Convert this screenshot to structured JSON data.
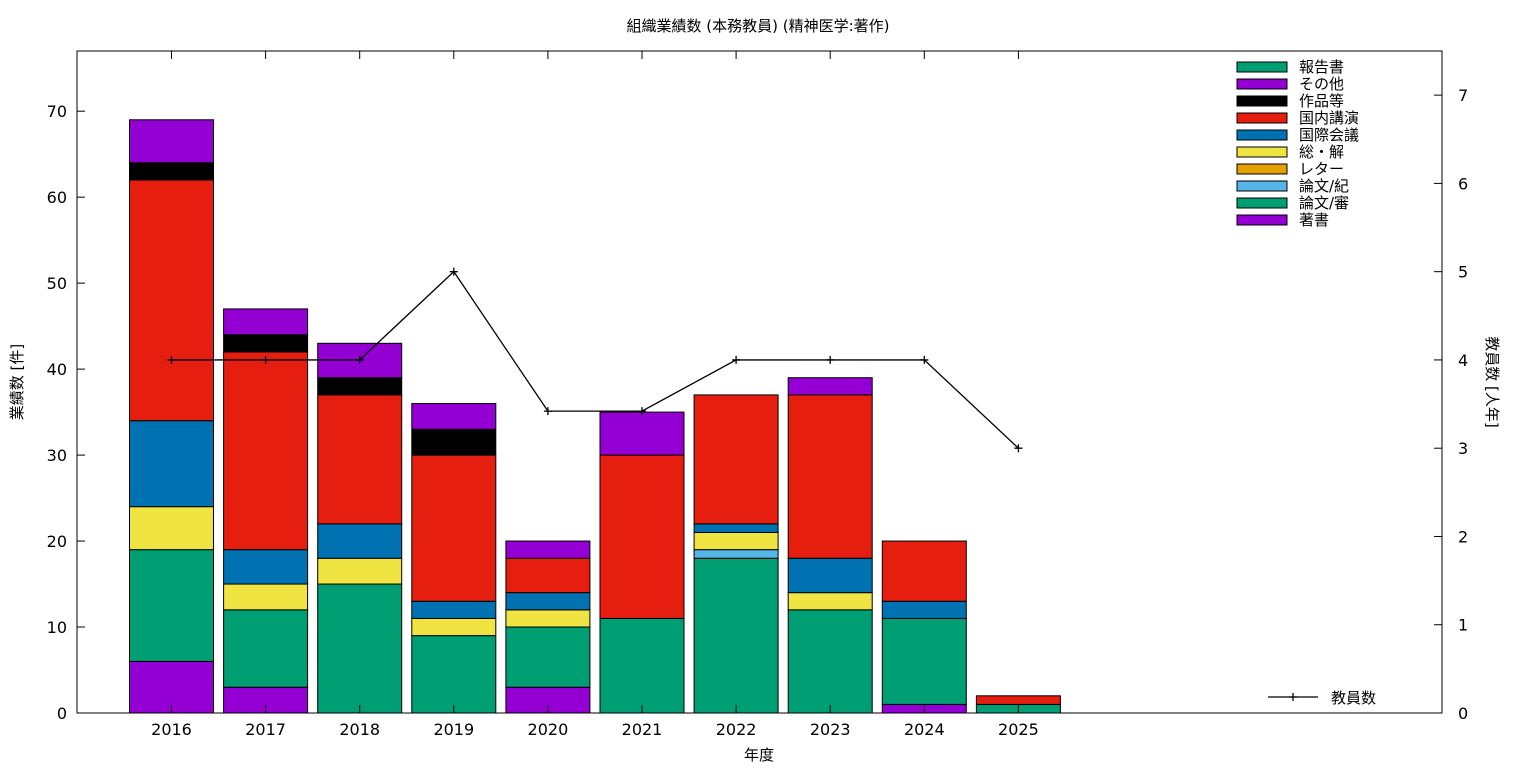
{
  "chart_data": {
    "type": "bar",
    "stacked": true,
    "title": "組織業績数 (本務教員) (精神医学:著作)",
    "xlabel": "年度",
    "ylabel": "業績数 [件]",
    "y2label": "教員数 [人年]",
    "categories": [
      "2016",
      "2017",
      "2018",
      "2019",
      "2020",
      "2021",
      "2022",
      "2023",
      "2024",
      "2025"
    ],
    "ylim": [
      0,
      77
    ],
    "yticks": [
      0,
      10,
      20,
      30,
      40,
      50,
      60,
      70
    ],
    "y2lim": [
      0,
      7.5
    ],
    "y2ticks": [
      0,
      1,
      2,
      3,
      4,
      5,
      6,
      7
    ],
    "grid": false,
    "legend_position": "top-right",
    "series": [
      {
        "name": "著書",
        "color": "#9400d3",
        "values": [
          6,
          3,
          0,
          0,
          3,
          0,
          0,
          0,
          1,
          0
        ]
      },
      {
        "name": "論文/審",
        "color": "#009e73",
        "values": [
          13,
          9,
          15,
          9,
          7,
          11,
          18,
          12,
          10,
          1
        ]
      },
      {
        "name": "論文/紀",
        "color": "#56b4e9",
        "values": [
          0,
          0,
          0,
          0,
          0,
          0,
          1,
          0,
          0,
          0
        ]
      },
      {
        "name": "レター",
        "color": "#e69f00",
        "values": [
          0,
          0,
          0,
          0,
          0,
          0,
          0,
          0,
          0,
          0
        ]
      },
      {
        "name": "総・解",
        "color": "#f0e442",
        "values": [
          5,
          3,
          3,
          2,
          2,
          0,
          2,
          2,
          0,
          0
        ]
      },
      {
        "name": "国際会議",
        "color": "#0072b2",
        "values": [
          10,
          4,
          4,
          2,
          2,
          0,
          1,
          4,
          2,
          0
        ]
      },
      {
        "name": "国内講演",
        "color": "#e51e10",
        "values": [
          28,
          23,
          15,
          17,
          4,
          19,
          15,
          19,
          7,
          1
        ]
      },
      {
        "name": "作品等",
        "color": "#000000",
        "values": [
          2,
          2,
          2,
          3,
          0,
          0,
          0,
          0,
          0,
          0
        ]
      },
      {
        "name": "その他",
        "color": "#9400d3",
        "values": [
          5,
          3,
          4,
          3,
          2,
          5,
          0,
          2,
          0,
          0
        ]
      },
      {
        "name": "報告書",
        "color": "#009e73",
        "values": [
          0,
          0,
          0,
          0,
          0,
          0,
          0,
          0,
          0,
          0
        ]
      }
    ],
    "line_series": {
      "name": "教員数",
      "color": "#000000",
      "axis": "right",
      "values": [
        4,
        4,
        4,
        5,
        3.42,
        3.42,
        4,
        4,
        4,
        3
      ]
    }
  }
}
